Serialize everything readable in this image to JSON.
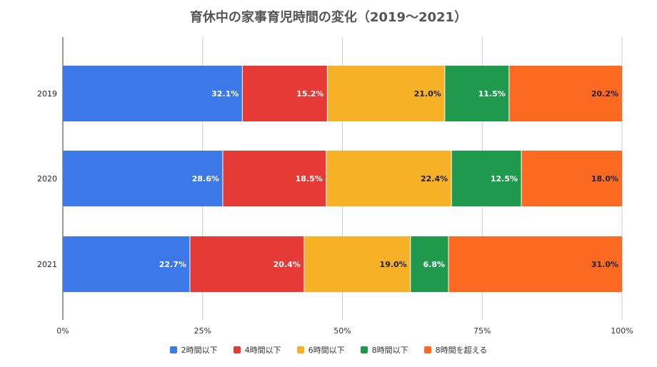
{
  "chart_data": {
    "type": "bar",
    "orientation": "horizontal",
    "stacked": true,
    "percent_stacked": true,
    "title": "育休中の家事育児時間の変化（2019〜2021）",
    "categories": [
      "2019",
      "2020",
      "2021"
    ],
    "series": [
      {
        "name": "2時間以下",
        "color": "#3c78e8",
        "values": [
          32.1,
          28.6,
          22.7
        ],
        "labels": [
          "32.1%",
          "28.6%",
          "22.7%"
        ],
        "label_color": "#ffffff"
      },
      {
        "name": "4時間以下",
        "color": "#e53a35",
        "values": [
          15.2,
          18.5,
          20.4
        ],
        "labels": [
          "15.2%",
          "18.5%",
          "20.4%"
        ],
        "label_color": "#ffffff"
      },
      {
        "name": "6時間以下",
        "color": "#f7b126",
        "values": [
          21.0,
          22.4,
          19.0
        ],
        "labels": [
          "21.0%",
          "22.4%",
          "19.0%"
        ],
        "label_color": "#222222"
      },
      {
        "name": "8時間以下",
        "color": "#1f9a4c",
        "values": [
          11.5,
          12.5,
          6.8
        ],
        "labels": [
          "11.5%",
          "12.5%",
          "6.8%"
        ],
        "label_color": "#ffffff"
      },
      {
        "name": "8時間を超える",
        "color": "#fc6a22",
        "values": [
          20.2,
          18.0,
          31.0
        ],
        "labels": [
          "20.2%",
          "18.0%",
          "31.0%"
        ],
        "label_color": "#222222"
      }
    ],
    "x_ticks": [
      "0%",
      "25%",
      "50%",
      "75%",
      "100%"
    ],
    "xlim": [
      0,
      100
    ],
    "grid": true,
    "legend_position": "bottom"
  }
}
